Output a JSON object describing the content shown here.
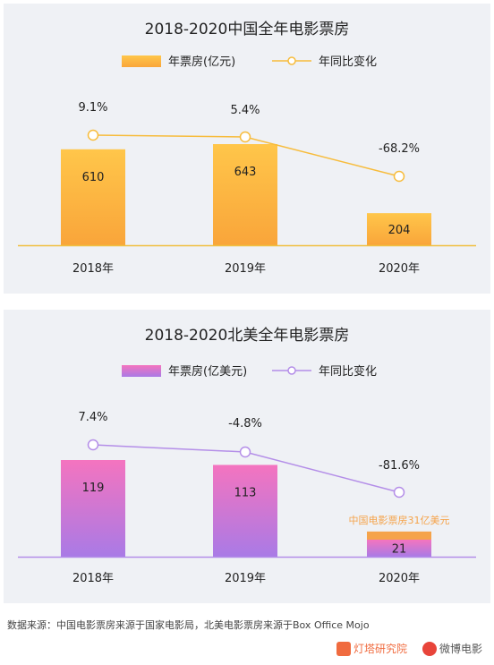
{
  "chart_data": [
    {
      "type": "bar",
      "title": "2018-2020中国全年电影票房",
      "categories": [
        "2018年",
        "2019年",
        "2020年"
      ],
      "series": [
        {
          "name": "年票房(亿元)",
          "kind": "bar",
          "values": [
            610,
            643,
            204
          ],
          "labels": [
            "610",
            "643",
            "204"
          ]
        },
        {
          "name": "年同比变化",
          "kind": "line",
          "values": [
            9.1,
            5.4,
            -68.2
          ],
          "labels": [
            "9.1%",
            "5.4%",
            "-68.2%"
          ]
        }
      ],
      "colors": {
        "bar_top": "#ffc64a",
        "bar_bottom": "#f9a53a",
        "line": "#f7bc3c",
        "axis": "#f0c040"
      },
      "legend_position": "top-center"
    },
    {
      "type": "bar",
      "title": "2018-2020北美全年电影票房",
      "categories": [
        "2018年",
        "2019年",
        "2020年"
      ],
      "series": [
        {
          "name": "年票房(亿美元)",
          "kind": "bar",
          "values": [
            119,
            113,
            21
          ],
          "labels": [
            "119",
            "113",
            "21"
          ]
        },
        {
          "name": "年同比变化",
          "kind": "line",
          "values": [
            7.4,
            -4.8,
            -81.6
          ],
          "labels": [
            "7.4%",
            "-4.8%",
            "-81.6%"
          ]
        }
      ],
      "annotation": {
        "text": "中国电影票房31亿美元",
        "value": 31,
        "category": "2020年"
      },
      "colors": {
        "bar_top": "#f474bf",
        "bar_bottom": "#a97ae6",
        "line": "#b48ee8",
        "axis": "#b48ee8",
        "annotation": "#f5a34a"
      },
      "legend_position": "top-center"
    }
  ],
  "footer": {
    "source": "数据来源：中国电影票房来源于国家电影局，北美电影票房来源于Box Office Mojo",
    "brand_left": "灯塔研究院",
    "brand_right": "微博电影"
  }
}
